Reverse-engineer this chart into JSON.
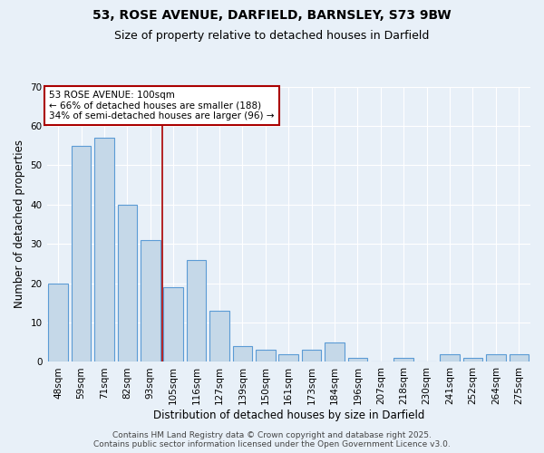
{
  "title_line1": "53, ROSE AVENUE, DARFIELD, BARNSLEY, S73 9BW",
  "title_line2": "Size of property relative to detached houses in Darfield",
  "xlabel": "Distribution of detached houses by size in Darfield",
  "ylabel": "Number of detached properties",
  "categories": [
    "48sqm",
    "59sqm",
    "71sqm",
    "82sqm",
    "93sqm",
    "105sqm",
    "116sqm",
    "127sqm",
    "139sqm",
    "150sqm",
    "161sqm",
    "173sqm",
    "184sqm",
    "196sqm",
    "207sqm",
    "218sqm",
    "230sqm",
    "241sqm",
    "252sqm",
    "264sqm",
    "275sqm"
  ],
  "values": [
    20,
    55,
    57,
    40,
    31,
    19,
    26,
    13,
    4,
    3,
    2,
    3,
    5,
    1,
    0,
    1,
    0,
    2,
    1,
    2,
    2
  ],
  "bar_color": "#c5d8e8",
  "bar_edge_color": "#5b9bd5",
  "background_color": "#e8f0f8",
  "grid_color": "#ffffff",
  "red_line_index": 4.5,
  "annotation_text": "53 ROSE AVENUE: 100sqm\n← 66% of detached houses are smaller (188)\n34% of semi-detached houses are larger (96) →",
  "annotation_box_color": "#ffffff",
  "annotation_border_color": "#aa0000",
  "ylim": [
    0,
    70
  ],
  "yticks": [
    0,
    10,
    20,
    30,
    40,
    50,
    60,
    70
  ],
  "footer_line1": "Contains HM Land Registry data © Crown copyright and database right 2025.",
  "footer_line2": "Contains public sector information licensed under the Open Government Licence v3.0.",
  "title_fontsize": 10,
  "subtitle_fontsize": 9,
  "axis_label_fontsize": 8.5,
  "tick_fontsize": 7.5,
  "annotation_fontsize": 7.5,
  "footer_fontsize": 6.5
}
